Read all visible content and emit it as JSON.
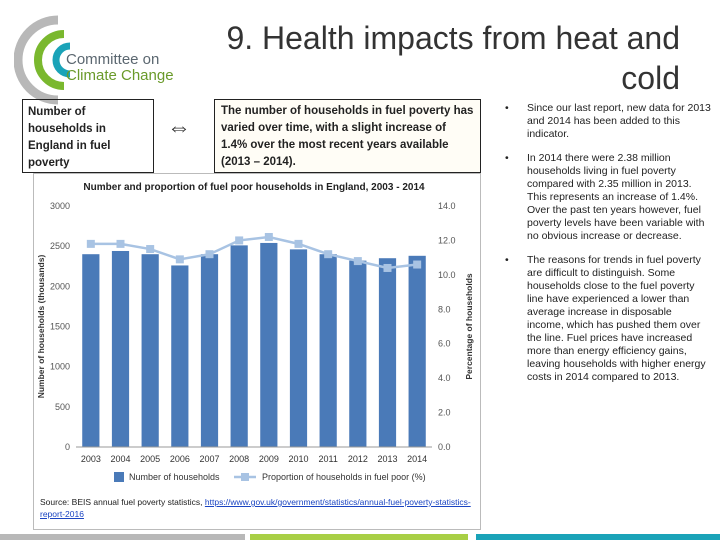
{
  "logo": {
    "line1": "Committee on",
    "line2": "Climate Change"
  },
  "title": "9. Health impacts from heat and cold",
  "indicator_label": "Number of households in England in fuel poverty",
  "arrow_symbol": "⇔",
  "summary": "The number of households in fuel poverty has varied over time, with a slight increase of 1.4% over the most recent years available (2013 – 2014).",
  "bullets": [
    {
      "symbol": "•",
      "text": "Since our last report, new data for 2013 and 2014 has been added to this indicator."
    },
    {
      "symbol": "•",
      "text": "In 2014 there were 2.38 million households living in fuel poverty compared with 2.35 million in 2013.  This represents an increase of 1.4%.  Over the past ten years however, fuel poverty levels have been variable with no obvious increase or decrease."
    },
    {
      "symbol": "•",
      "text": "The reasons for trends in fuel poverty are difficult to distinguish. Some households close to the fuel poverty line have experienced a lower than average increase in disposable income, which has pushed them over the line. Fuel prices have increased more than energy efficiency gains, leaving households with higher energy costs in 2014 compared to 2013."
    }
  ],
  "source": {
    "prefix": "Source: BEIS annual fuel poverty statistics, ",
    "link": "https://www.gov.uk/government/statistics/annual-fuel-poverty-statistics-report-2016"
  },
  "colors": {
    "bar": "#4a7ab8",
    "line": "#a8c3e3",
    "green": "#7ab82e",
    "teal": "#1aa3b8"
  },
  "chart_data": {
    "type": "bar",
    "title": "Number and proportion of fuel poor households in England, 2003 - 2014",
    "categories": [
      "2003",
      "2004",
      "2005",
      "2006",
      "2007",
      "2008",
      "2009",
      "2010",
      "2011",
      "2012",
      "2013",
      "2014"
    ],
    "series": [
      {
        "name": "Number of households",
        "axis": "left",
        "type": "bar",
        "values": [
          2400,
          2440,
          2400,
          2260,
          2400,
          2510,
          2540,
          2460,
          2400,
          2320,
          2350,
          2380
        ]
      },
      {
        "name": "Proportion of households in fuel poor (%)",
        "axis": "right",
        "type": "line",
        "values": [
          11.8,
          11.8,
          11.5,
          10.9,
          11.2,
          12.0,
          12.2,
          11.8,
          11.2,
          10.8,
          10.4,
          10.6
        ]
      }
    ],
    "ylabel": "Number of households (thousands)",
    "y2label": "Percentage of households",
    "ylim": [
      0,
      3000
    ],
    "y2lim": [
      0,
      14
    ],
    "yticks": [
      "0",
      "500",
      "1000",
      "1500",
      "2000",
      "2500",
      "3000"
    ],
    "y2ticks": [
      "0.0",
      "2.0",
      "4.0",
      "6.0",
      "8.0",
      "10.0",
      "12.0",
      "14.0"
    ],
    "legend_position": "bottom",
    "grid": false
  }
}
